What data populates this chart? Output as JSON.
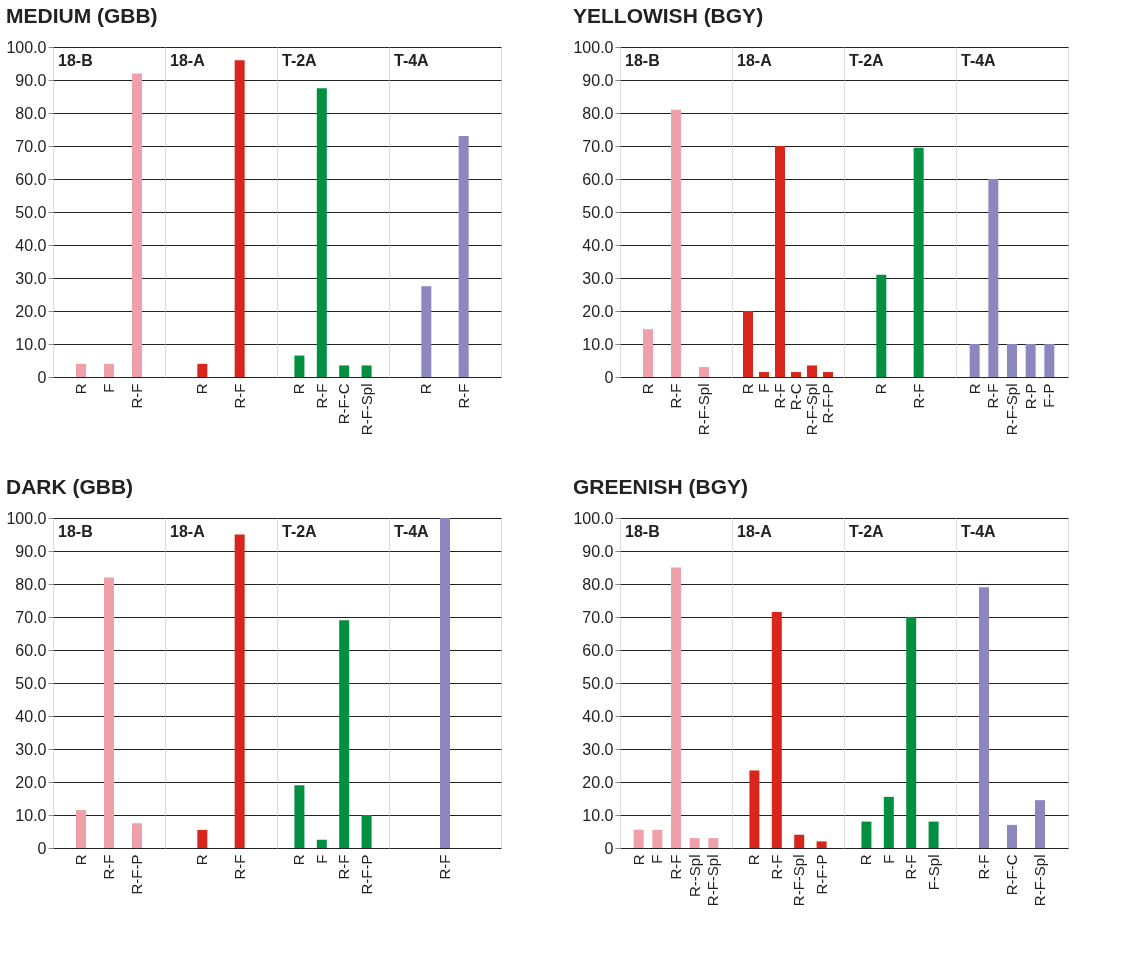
{
  "chart_data": [
    {
      "type": "bar",
      "title": "MEDIUM (GBB)",
      "subtitle": "18-B",
      "categories": [
        "R",
        "F",
        "R-F"
      ],
      "values": [
        4.0,
        4.0,
        92.0
      ],
      "color": "#f0a0a8",
      "ylim": [
        0,
        100
      ],
      "yticks": [
        0,
        {
          "value": 10,
          "label": "10.0"
        },
        {
          "value": 20,
          "label": "20.0"
        },
        {
          "value": 30,
          "label": "30.0"
        },
        {
          "value": 40,
          "label": "40.0"
        },
        {
          "value": 50,
          "label": "50.0"
        },
        {
          "value": 60,
          "label": "60.0"
        },
        {
          "value": 70,
          "label": "70.0"
        },
        {
          "value": 80,
          "label": "80.0"
        },
        {
          "value": 90,
          "label": "90.0"
        },
        {
          "value": 100,
          "label": "100.0"
        }
      ],
      "grid": "y"
    },
    {
      "type": "bar",
      "subtitle": "18-A",
      "categories": [
        "R",
        "R-F"
      ],
      "values": [
        4.0,
        96.0
      ],
      "color": "#d9261c",
      "ylim": [
        0,
        100
      ],
      "yticks": [
        0,
        10,
        20,
        30,
        40,
        50,
        60,
        70,
        80,
        90,
        100
      ],
      "grid": "y",
      "tick_labels": "x"
    },
    {
      "type": "bar",
      "subtitle": "T-2A",
      "categories": [
        "R",
        "R-F",
        "R-F-C",
        "R-F-Spl"
      ],
      "values": [
        6.5,
        87.5,
        3.5,
        3.5
      ],
      "color": "#009040",
      "ylim": [
        0,
        100
      ],
      "yticks": [
        0,
        10,
        20,
        30,
        40,
        50,
        60,
        70,
        80,
        90,
        100
      ],
      "grid": "y",
      "tick_labels": "x"
    },
    {
      "type": "bar",
      "subtitle": "T-4A",
      "categories": [
        "R",
        "R-F"
      ],
      "values": [
        27.5,
        73.0
      ],
      "color": "#8c87bf",
      "ylim": [
        0,
        100
      ],
      "yticks": [
        0,
        10,
        20,
        30,
        40,
        50,
        60,
        70,
        80,
        90,
        100
      ],
      "grid": "y",
      "tick_labels": "x"
    },
    {
      "type": "bar",
      "title": "YELLOWISH (BGY)",
      "subtitle": "18-B",
      "categories": [
        "R",
        "R-F",
        "R-F-Spl"
      ],
      "values": [
        14.5,
        81.0,
        3.0
      ],
      "color": "#f0a0a8",
      "ylim": [
        0,
        100
      ],
      "yticks": [
        0,
        {
          "value": 10,
          "label": "10.0"
        },
        {
          "value": 20,
          "label": "20.0"
        },
        {
          "value": 30,
          "label": "30.0"
        },
        {
          "value": 40,
          "label": "40.0"
        },
        {
          "value": 50,
          "label": "50.0"
        },
        {
          "value": 60,
          "label": "60.0"
        },
        {
          "value": 70,
          "label": "70.0"
        },
        {
          "value": 80,
          "label": "80.0"
        },
        {
          "value": 90,
          "label": "90.0"
        },
        {
          "value": 100,
          "label": "100.0"
        }
      ],
      "grid": "y"
    },
    {
      "type": "bar",
      "subtitle": "18-A",
      "categories": [
        "R",
        "F",
        "R-F",
        "R-C",
        "R-F-Spl",
        "R-F-P"
      ],
      "values": [
        20.0,
        1.5,
        70.0,
        1.5,
        3.5,
        1.5
      ],
      "color": "#d9261c",
      "ylim": [
        0,
        100
      ],
      "yticks": [
        0,
        10,
        20,
        30,
        40,
        50,
        60,
        70,
        80,
        90,
        100
      ],
      "grid": "y",
      "tick_labels": "x"
    },
    {
      "type": "bar",
      "subtitle": "T-2A",
      "categories": [
        "R",
        "R-F"
      ],
      "values": [
        31.0,
        69.5
      ],
      "color": "#009040",
      "ylim": [
        0,
        100
      ],
      "yticks": [
        0,
        10,
        20,
        30,
        40,
        50,
        60,
        70,
        80,
        90,
        100
      ],
      "grid": "y",
      "tick_labels": "x"
    },
    {
      "type": "bar",
      "subtitle": "T-4A",
      "categories": [
        "R",
        "R-F",
        "R-F-Spl",
        "R-P",
        "F-P"
      ],
      "values": [
        10.0,
        60.0,
        10.0,
        10.0,
        10.0
      ],
      "color": "#8c87bf",
      "ylim": [
        0,
        100
      ],
      "yticks": [
        0,
        10,
        20,
        30,
        40,
        50,
        60,
        70,
        80,
        90,
        100
      ],
      "grid": "y",
      "tick_labels": "x"
    },
    {
      "type": "bar",
      "title": "DARK (GBB)",
      "subtitle": "18-B",
      "categories": [
        "R",
        "R-F",
        "R-F-P"
      ],
      "values": [
        11.5,
        82.0,
        7.5
      ],
      "color": "#f0a0a8",
      "ylim": [
        0,
        100
      ],
      "yticks": [
        0,
        {
          "value": 10,
          "label": "10.0"
        },
        {
          "value": 20,
          "label": "20.0"
        },
        {
          "value": 30,
          "label": "30.0"
        },
        {
          "value": 40,
          "label": "40.0"
        },
        {
          "value": 50,
          "label": "50.0"
        },
        {
          "value": 60,
          "label": "60.0"
        },
        {
          "value": 70,
          "label": "70.0"
        },
        {
          "value": 80,
          "label": "80.0"
        },
        {
          "value": 90,
          "label": "90.0"
        },
        {
          "value": 100,
          "label": "100.0"
        }
      ],
      "grid": "y"
    },
    {
      "type": "bar",
      "subtitle": "18-A",
      "categories": [
        "R",
        "R-F"
      ],
      "values": [
        5.5,
        95.0
      ],
      "color": "#d9261c",
      "ylim": [
        0,
        100
      ],
      "yticks": [
        0,
        10,
        20,
        30,
        40,
        50,
        60,
        70,
        80,
        90,
        100
      ],
      "grid": "y",
      "tick_labels": "x"
    },
    {
      "type": "bar",
      "subtitle": "T-2A",
      "categories": [
        "R",
        "F",
        "R-F",
        "R-F-P"
      ],
      "values": [
        19.0,
        2.5,
        69.0,
        10.0
      ],
      "color": "#009040",
      "ylim": [
        0,
        100
      ],
      "yticks": [
        0,
        10,
        20,
        30,
        40,
        50,
        60,
        70,
        80,
        90,
        100
      ],
      "grid": "y",
      "tick_labels": "x"
    },
    {
      "type": "bar",
      "subtitle": "T-4A",
      "categories": [
        "R-F"
      ],
      "values": [
        100.0
      ],
      "color": "#8c87bf",
      "ylim": [
        0,
        100
      ],
      "yticks": [
        0,
        10,
        20,
        30,
        40,
        50,
        60,
        70,
        80,
        90,
        100
      ],
      "grid": "y",
      "tick_labels": "x"
    },
    {
      "type": "bar",
      "title": "GREENISH (BGY)",
      "subtitle": "18-B",
      "categories": [
        "R",
        "F",
        "R-F",
        "R--Spl",
        "R-F-Spl"
      ],
      "values": [
        5.5,
        5.5,
        85.0,
        3.0,
        3.0
      ],
      "color": "#f0a0a8",
      "ylim": [
        0,
        100
      ],
      "yticks": [
        0,
        {
          "value": 10,
          "label": "10.0"
        },
        {
          "value": 20,
          "label": "20.0"
        },
        {
          "value": 30,
          "label": "30.0"
        },
        {
          "value": 40,
          "label": "40.0"
        },
        {
          "value": 50,
          "label": "50.0"
        },
        {
          "value": 60,
          "label": "60.0"
        },
        {
          "value": 70,
          "label": "70.0"
        },
        {
          "value": 80,
          "label": "80.0"
        },
        {
          "value": 90,
          "label": "90.0"
        },
        {
          "value": 100,
          "label": "100.0"
        }
      ],
      "grid": "y"
    },
    {
      "type": "bar",
      "subtitle": "18-A",
      "categories": [
        "R",
        "R-F",
        "R-F-Spl",
        "R-F-P"
      ],
      "values": [
        23.5,
        71.5,
        4.0,
        2.0
      ],
      "color": "#d9261c",
      "ylim": [
        0,
        100
      ],
      "yticks": [
        0,
        10,
        20,
        30,
        40,
        50,
        60,
        70,
        80,
        90,
        100
      ],
      "grid": "y",
      "tick_labels": "x"
    },
    {
      "type": "bar",
      "subtitle": "T-2A",
      "categories": [
        "R",
        "F",
        "R-F",
        "F-Spl"
      ],
      "values": [
        8.0,
        15.5,
        70.0,
        8.0
      ],
      "color": "#009040",
      "ylim": [
        0,
        100
      ],
      "yticks": [
        0,
        10,
        20,
        30,
        40,
        50,
        60,
        70,
        80,
        90,
        100
      ],
      "grid": "y",
      "tick_labels": "x"
    },
    {
      "type": "bar",
      "subtitle": "T-4A",
      "categories": [
        "R-F",
        "R-F-C",
        "R-F-Spl"
      ],
      "values": [
        79.0,
        7.0,
        14.5
      ],
      "color": "#8c87bf",
      "ylim": [
        0,
        100
      ],
      "yticks": [
        0,
        10,
        20,
        30,
        40,
        50,
        60,
        70,
        80,
        90,
        100
      ],
      "grid": "y",
      "tick_labels": "x"
    }
  ]
}
